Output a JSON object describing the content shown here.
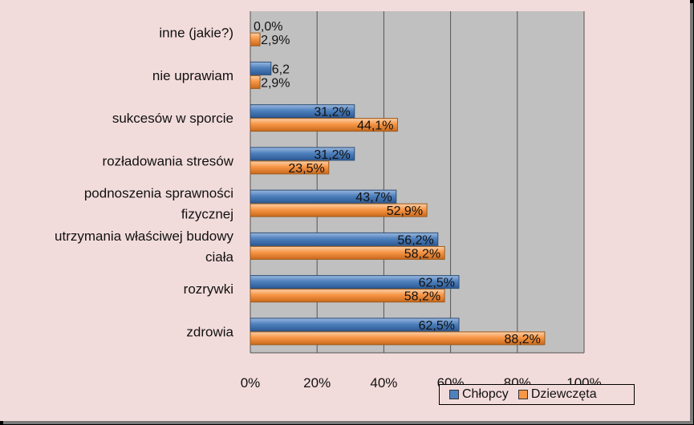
{
  "chart_data": {
    "type": "bar",
    "orientation": "horizontal",
    "categories": [
      "zdrowia",
      "rozrywki",
      "utrzymania właściwej budowy ciała",
      "podnoszenia sprawności fizycznej",
      "rozładowania stresów",
      "sukcesów w sporcie",
      "nie uprawiam",
      "inne (jakie?)"
    ],
    "category_lines": [
      [
        "zdrowia"
      ],
      [
        "rozrywki"
      ],
      [
        "utrzymania właściwej budowy",
        "ciała"
      ],
      [
        "podnoszenia sprawności",
        "fizycznej"
      ],
      [
        "rozładowania stresów"
      ],
      [
        "sukcesów w sporcie"
      ],
      [
        "nie uprawiam"
      ],
      [
        "inne (jakie?)"
      ]
    ],
    "series": [
      {
        "name": "Chłopcy",
        "color": "#4f81bd",
        "values": [
          62.5,
          62.5,
          56.2,
          43.7,
          31.2,
          31.2,
          6.2,
          0.0
        ],
        "labels": [
          "62,5%",
          "62,5%",
          "56,2%",
          "43,7%",
          "31,2%",
          "31,2%",
          "6,2",
          "0,0%"
        ]
      },
      {
        "name": "Dziewczęta",
        "color": "#f79646",
        "values": [
          88.2,
          58.2,
          58.2,
          52.9,
          23.5,
          44.1,
          2.9,
          2.9
        ],
        "labels": [
          "88,2%",
          "58,2%",
          "58,2%",
          "52,9%",
          "23,5%",
          "44,1%",
          "2,9%",
          "2,9%"
        ]
      }
    ],
    "xlim": [
      0,
      100
    ],
    "xticks": [
      0,
      20,
      40,
      60,
      80,
      100
    ],
    "xtick_labels": [
      "0%",
      "20%",
      "40%",
      "60%",
      "80%",
      "100%"
    ],
    "grid": true,
    "legend_position": "bottom-right"
  }
}
